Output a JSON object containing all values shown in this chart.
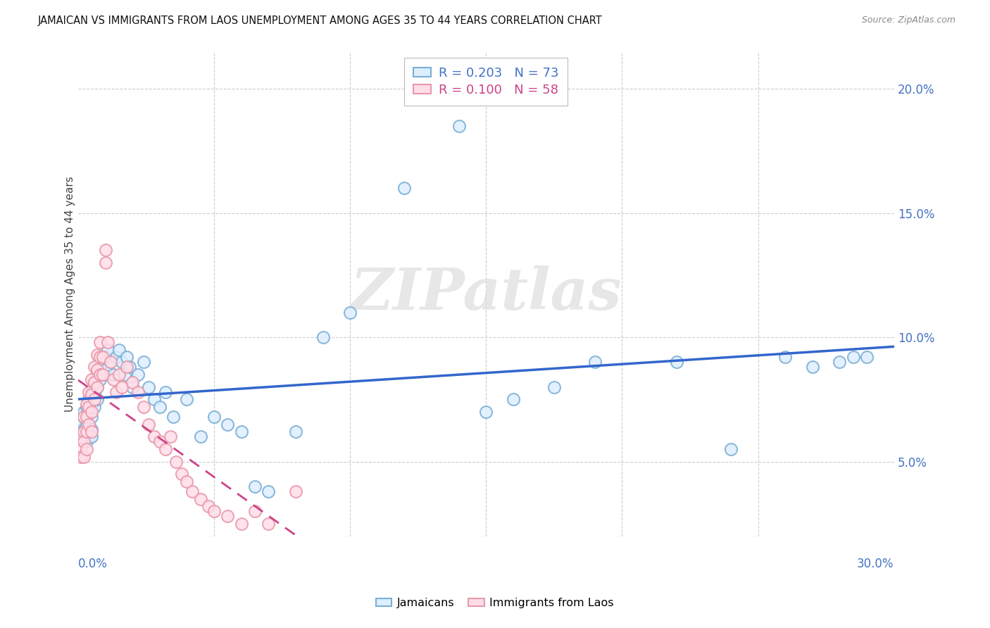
{
  "title": "JAMAICAN VS IMMIGRANTS FROM LAOS UNEMPLOYMENT AMONG AGES 35 TO 44 YEARS CORRELATION CHART",
  "source": "Source: ZipAtlas.com",
  "ylabel": "Unemployment Among Ages 35 to 44 years",
  "xlim": [
    0.0,
    0.3
  ],
  "ylim": [
    0.02,
    0.215
  ],
  "yticks": [
    0.05,
    0.1,
    0.15,
    0.2
  ],
  "ytick_labels": [
    "5.0%",
    "10.0%",
    "15.0%",
    "20.0%"
  ],
  "xtick_grid": [
    0.05,
    0.1,
    0.15,
    0.2,
    0.25
  ],
  "legend1_R": "0.203",
  "legend1_N": "73",
  "legend2_R": "0.100",
  "legend2_N": "58",
  "color_jamaican_fill": "#ddeeff",
  "color_jamaican_edge": "#7bafd4",
  "color_laos_fill": "#ffdde8",
  "color_laos_edge": "#e899aa",
  "color_jamaican_line": "#3366cc",
  "color_laos_line": "#cc4488",
  "color_axis_label": "#4472c4",
  "color_grid": "#cccccc",
  "color_title": "#111111",
  "color_source": "#888888",
  "watermark_text": "ZIPatlas",
  "watermark_color": "#dddddd",
  "legend_R_color": "#4472c4",
  "legend_N_color": "#4472c4",
  "legend_R2_color": "#cc4488",
  "legend_N2_color": "#cc4488",
  "jamaican_x": [
    0.001,
    0.001,
    0.001,
    0.002,
    0.002,
    0.002,
    0.002,
    0.003,
    0.003,
    0.003,
    0.003,
    0.003,
    0.004,
    0.004,
    0.004,
    0.004,
    0.005,
    0.005,
    0.005,
    0.005,
    0.005,
    0.006,
    0.006,
    0.006,
    0.007,
    0.007,
    0.007,
    0.008,
    0.008,
    0.009,
    0.009,
    0.01,
    0.01,
    0.011,
    0.012,
    0.013,
    0.014,
    0.015,
    0.016,
    0.017,
    0.018,
    0.019,
    0.02,
    0.022,
    0.024,
    0.026,
    0.028,
    0.03,
    0.032,
    0.035,
    0.04,
    0.045,
    0.05,
    0.055,
    0.06,
    0.065,
    0.07,
    0.08,
    0.09,
    0.1,
    0.12,
    0.14,
    0.16,
    0.19,
    0.22,
    0.24,
    0.26,
    0.27,
    0.28,
    0.285,
    0.15,
    0.175,
    0.29
  ],
  "jamaican_y": [
    0.063,
    0.065,
    0.06,
    0.068,
    0.063,
    0.07,
    0.06,
    0.072,
    0.068,
    0.065,
    0.06,
    0.058,
    0.075,
    0.07,
    0.065,
    0.06,
    0.078,
    0.073,
    0.068,
    0.063,
    0.06,
    0.082,
    0.077,
    0.072,
    0.086,
    0.08,
    0.075,
    0.088,
    0.083,
    0.09,
    0.085,
    0.092,
    0.087,
    0.095,
    0.09,
    0.085,
    0.092,
    0.095,
    0.09,
    0.085,
    0.092,
    0.088,
    0.08,
    0.085,
    0.09,
    0.08,
    0.075,
    0.072,
    0.078,
    0.068,
    0.075,
    0.06,
    0.068,
    0.065,
    0.062,
    0.04,
    0.038,
    0.062,
    0.1,
    0.11,
    0.16,
    0.185,
    0.075,
    0.09,
    0.09,
    0.055,
    0.092,
    0.088,
    0.09,
    0.092,
    0.07,
    0.08,
    0.092
  ],
  "laos_x": [
    0.001,
    0.001,
    0.001,
    0.002,
    0.002,
    0.002,
    0.002,
    0.003,
    0.003,
    0.003,
    0.003,
    0.004,
    0.004,
    0.004,
    0.005,
    0.005,
    0.005,
    0.005,
    0.006,
    0.006,
    0.006,
    0.007,
    0.007,
    0.007,
    0.008,
    0.008,
    0.008,
    0.009,
    0.009,
    0.01,
    0.01,
    0.011,
    0.012,
    0.013,
    0.014,
    0.015,
    0.016,
    0.018,
    0.02,
    0.022,
    0.024,
    0.026,
    0.028,
    0.03,
    0.032,
    0.034,
    0.036,
    0.038,
    0.04,
    0.042,
    0.045,
    0.048,
    0.05,
    0.055,
    0.06,
    0.065,
    0.07,
    0.08
  ],
  "laos_y": [
    0.06,
    0.055,
    0.052,
    0.068,
    0.062,
    0.058,
    0.052,
    0.073,
    0.068,
    0.062,
    0.055,
    0.078,
    0.072,
    0.065,
    0.083,
    0.077,
    0.07,
    0.062,
    0.088,
    0.082,
    0.075,
    0.093,
    0.087,
    0.08,
    0.098,
    0.092,
    0.085,
    0.092,
    0.085,
    0.13,
    0.135,
    0.098,
    0.09,
    0.083,
    0.078,
    0.085,
    0.08,
    0.088,
    0.082,
    0.078,
    0.072,
    0.065,
    0.06,
    0.058,
    0.055,
    0.06,
    0.05,
    0.045,
    0.042,
    0.038,
    0.035,
    0.032,
    0.03,
    0.028,
    0.025,
    0.03,
    0.025,
    0.038
  ]
}
